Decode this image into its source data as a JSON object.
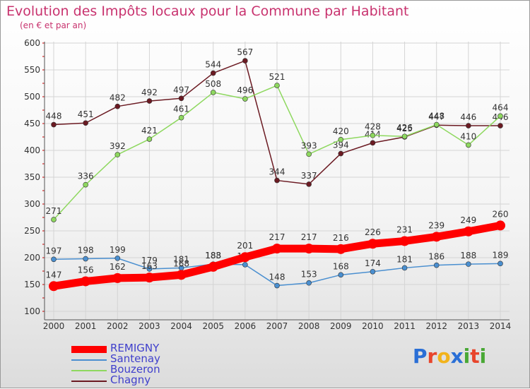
{
  "title": "Evolution des Impôts locaux pour la Commune par Habitant",
  "subtitle": "(en € et par an)",
  "logo": {
    "text": "Proxiti",
    "letters": [
      "P",
      "r",
      "o",
      "x",
      "i",
      "t",
      "i"
    ],
    "colors": [
      "#2a6fd6",
      "#e8452c",
      "#f2b31b",
      "#2a6fd6",
      "#49a835",
      "#e8452c",
      "#49a835"
    ]
  },
  "chart_data": {
    "type": "line",
    "x": [
      "2000",
      "2001",
      "2002",
      "2003",
      "2004",
      "2005",
      "2006",
      "2007",
      "2008",
      "2009",
      "2010",
      "2011",
      "2012",
      "2013",
      "2014"
    ],
    "ylim": [
      100,
      600
    ],
    "yticks": [
      "100",
      "150",
      "200",
      "250",
      "300",
      "350",
      "400",
      "450",
      "500",
      "550",
      "600"
    ],
    "grid": true,
    "legend_position": "bottom-left",
    "series": [
      {
        "name": "Chagny",
        "color": "#6b1a22",
        "values": [
          448,
          451,
          482,
          492,
          497,
          544,
          567,
          344,
          337,
          394,
          414,
          425,
          447,
          446,
          446
        ]
      },
      {
        "name": "Bouzeron",
        "color": "#8ed85f",
        "values": [
          271,
          336,
          392,
          421,
          461,
          508,
          496,
          521,
          393,
          420,
          428,
          426,
          448,
          410,
          464
        ]
      },
      {
        "name": "Santenay",
        "color": "#4a8fd0",
        "values": [
          197,
          198,
          199,
          179,
          181,
          188,
          187,
          148,
          153,
          168,
          174,
          181,
          186,
          188,
          189
        ]
      },
      {
        "name": "REMIGNY",
        "color": "#ff0000",
        "values": [
          147,
          156,
          162,
          163,
          168,
          183,
          201,
          217,
          217,
          216,
          226,
          231,
          239,
          249,
          260
        ]
      }
    ],
    "legend": [
      "REMIGNY",
      "Santenay",
      "Bouzeron",
      "Chagny"
    ]
  }
}
